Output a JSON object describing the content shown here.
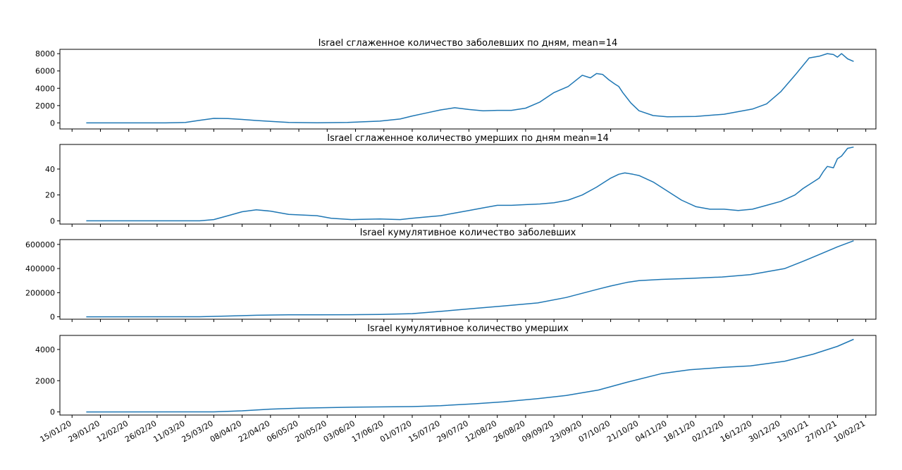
{
  "colors": {
    "line": "#1f77b4",
    "axis": "#000000",
    "background": "#ffffff"
  },
  "date_axis": {
    "tick_labels": [
      "15/01/20",
      "29/01/20",
      "12/02/20",
      "26/02/20",
      "11/03/20",
      "25/03/20",
      "08/04/20",
      "22/04/20",
      "06/05/20",
      "20/05/20",
      "03/06/20",
      "17/06/20",
      "01/07/20",
      "15/07/20",
      "29/07/20",
      "12/08/20",
      "26/08/20",
      "09/09/20",
      "23/09/20",
      "07/10/20",
      "21/10/20",
      "04/11/20",
      "18/11/20",
      "02/12/20",
      "16/12/20",
      "30/12/20",
      "13/01/21",
      "27/01/21",
      "10/02/21"
    ],
    "xlim": [
      "2020-01-09",
      "2021-02-15"
    ]
  },
  "chart_data": [
    {
      "type": "line",
      "title": "Israel сглаженное количество заболевших  по дням, mean=14",
      "ylim": [
        -700,
        8500
      ],
      "yticks": [
        0,
        2000,
        4000,
        6000,
        8000
      ],
      "ytick_labels": [
        "0",
        "2000",
        "4000",
        "6000",
        "8000"
      ],
      "show_x_tick_labels": false,
      "grid": false,
      "series": [
        {
          "x": [
            "2020-01-22",
            "2020-03-01",
            "2020-03-11",
            "2020-03-18",
            "2020-03-25",
            "2020-04-01",
            "2020-04-08",
            "2020-04-15",
            "2020-04-22",
            "2020-05-01",
            "2020-05-15",
            "2020-05-30",
            "2020-06-15",
            "2020-06-25",
            "2020-07-01",
            "2020-07-08",
            "2020-07-15",
            "2020-07-22",
            "2020-07-29",
            "2020-08-05",
            "2020-08-12",
            "2020-08-19",
            "2020-08-26",
            "2020-09-02",
            "2020-09-09",
            "2020-09-16",
            "2020-09-23",
            "2020-09-27",
            "2020-09-30",
            "2020-10-03",
            "2020-10-06",
            "2020-10-09",
            "2020-10-11",
            "2020-10-13",
            "2020-10-17",
            "2020-10-21",
            "2020-10-28",
            "2020-11-04",
            "2020-11-18",
            "2020-12-02",
            "2020-12-16",
            "2020-12-23",
            "2020-12-30",
            "2021-01-06",
            "2021-01-13",
            "2021-01-18",
            "2021-01-22",
            "2021-01-25",
            "2021-01-27",
            "2021-01-29",
            "2021-02-01",
            "2021-02-04"
          ],
          "y": [
            0,
            0,
            50,
            300,
            520,
            500,
            400,
            280,
            180,
            60,
            20,
            60,
            200,
            450,
            800,
            1150,
            1500,
            1750,
            1550,
            1400,
            1450,
            1450,
            1700,
            2400,
            3500,
            4200,
            5500,
            5200,
            5700,
            5600,
            5000,
            4500,
            4200,
            3500,
            2300,
            1400,
            850,
            700,
            750,
            1000,
            1600,
            2200,
            3600,
            5500,
            7500,
            7700,
            8000,
            7900,
            7600,
            8000,
            7400,
            7100
          ]
        }
      ]
    },
    {
      "type": "line",
      "title": "Israel сглаженное количество умерших по дням mean=14",
      "ylim": [
        -2.5,
        59
      ],
      "yticks": [
        0,
        20,
        40
      ],
      "ytick_labels": [
        "0",
        "20",
        "40"
      ],
      "show_x_tick_labels": false,
      "grid": false,
      "series": [
        {
          "x": [
            "2020-01-22",
            "2020-03-18",
            "2020-03-25",
            "2020-04-01",
            "2020-04-08",
            "2020-04-15",
            "2020-04-22",
            "2020-05-01",
            "2020-05-15",
            "2020-05-22",
            "2020-06-01",
            "2020-06-15",
            "2020-06-25",
            "2020-07-01",
            "2020-07-08",
            "2020-07-15",
            "2020-07-22",
            "2020-07-29",
            "2020-08-05",
            "2020-08-12",
            "2020-08-19",
            "2020-08-26",
            "2020-09-02",
            "2020-09-09",
            "2020-09-16",
            "2020-09-23",
            "2020-09-30",
            "2020-10-04",
            "2020-10-07",
            "2020-10-11",
            "2020-10-14",
            "2020-10-18",
            "2020-10-21",
            "2020-10-28",
            "2020-11-04",
            "2020-11-11",
            "2020-11-18",
            "2020-11-25",
            "2020-12-02",
            "2020-12-09",
            "2020-12-16",
            "2020-12-23",
            "2020-12-30",
            "2021-01-06",
            "2021-01-10",
            "2021-01-13",
            "2021-01-18",
            "2021-01-20",
            "2021-01-22",
            "2021-01-25",
            "2021-01-27",
            "2021-01-29",
            "2021-02-01",
            "2021-02-04"
          ],
          "y": [
            0,
            0,
            1,
            4,
            7,
            8.5,
            7.5,
            5,
            4,
            2,
            1,
            1.5,
            1,
            2,
            3,
            4,
            6,
            8,
            10,
            12,
            12,
            12.5,
            13,
            14,
            16,
            20,
            26,
            30,
            33,
            36,
            37,
            36,
            35,
            30,
            23,
            16,
            11,
            9,
            9,
            8,
            9,
            12,
            15,
            20,
            25,
            28,
            33,
            38,
            42,
            41,
            48,
            50,
            56,
            57
          ]
        }
      ]
    },
    {
      "type": "line",
      "title": "Israel кумулятивное количество заболевших",
      "ylim": [
        -20000,
        640000
      ],
      "yticks": [
        0,
        200000,
        400000,
        600000
      ],
      "ytick_labels": [
        "0",
        "200000",
        "400000",
        "600000"
      ],
      "show_x_tick_labels": false,
      "grid": false,
      "series": [
        {
          "x": [
            "2020-01-22",
            "2020-03-18",
            "2020-04-01",
            "2020-04-15",
            "2020-05-01",
            "2020-05-15",
            "2020-06-01",
            "2020-06-15",
            "2020-07-01",
            "2020-07-15",
            "2020-08-01",
            "2020-08-15",
            "2020-09-01",
            "2020-09-15",
            "2020-10-01",
            "2020-10-07",
            "2020-10-15",
            "2020-10-21",
            "2020-11-01",
            "2020-11-15",
            "2020-12-01",
            "2020-12-15",
            "2021-01-01",
            "2021-01-10",
            "2021-01-20",
            "2021-01-27",
            "2021-02-04"
          ],
          "y": [
            0,
            500,
            6000,
            13000,
            16000,
            16700,
            17500,
            20000,
            26000,
            45000,
            70000,
            90000,
            115000,
            160000,
            230000,
            255000,
            285000,
            300000,
            310000,
            318000,
            330000,
            350000,
            400000,
            460000,
            530000,
            580000,
            630000
          ]
        }
      ]
    },
    {
      "type": "line",
      "title": "Israel кумулятивное количество умерших",
      "ylim": [
        -200,
        4900
      ],
      "yticks": [
        0,
        2000,
        4000
      ],
      "ytick_labels": [
        "0",
        "2000",
        "4000"
      ],
      "show_x_tick_labels": true,
      "grid": false,
      "series": [
        {
          "x": [
            "2020-01-22",
            "2020-03-25",
            "2020-04-08",
            "2020-04-22",
            "2020-05-06",
            "2020-06-01",
            "2020-07-01",
            "2020-07-15",
            "2020-08-01",
            "2020-08-15",
            "2020-09-01",
            "2020-09-15",
            "2020-10-01",
            "2020-10-15",
            "2020-11-01",
            "2020-11-15",
            "2020-12-01",
            "2020-12-15",
            "2021-01-01",
            "2021-01-15",
            "2021-01-27",
            "2021-02-04"
          ],
          "y": [
            0,
            5,
            70,
            180,
            240,
            300,
            340,
            400,
            520,
            650,
            850,
            1050,
            1400,
            1900,
            2450,
            2700,
            2850,
            2950,
            3250,
            3700,
            4200,
            4650
          ]
        }
      ]
    }
  ]
}
